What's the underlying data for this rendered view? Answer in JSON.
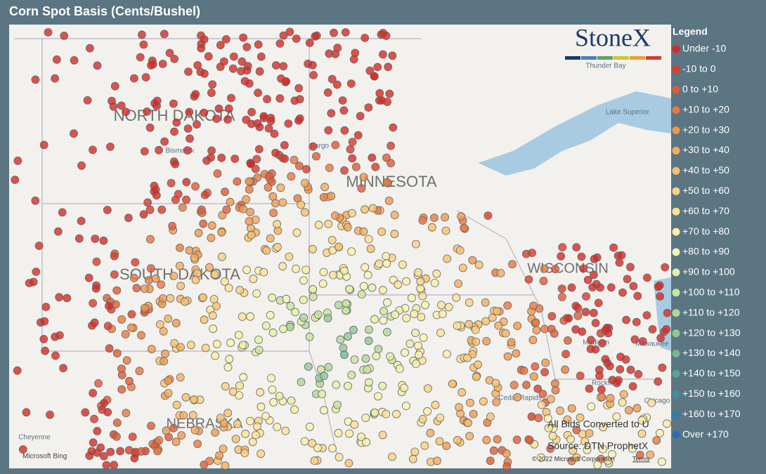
{
  "header": {
    "title": "Corn Spot Basis (Cents/Bushel)"
  },
  "logo": "StoneX",
  "legend": {
    "title": "Legend",
    "items": [
      {
        "label": "Under -10",
        "color": "#d42a26"
      },
      {
        "label": "-10 to 0",
        "color": "#da3b2b"
      },
      {
        "label": "0 to +10",
        "color": "#e15a37"
      },
      {
        "label": "+10 to +20",
        "color": "#e9783f"
      },
      {
        "label": "+20 to +30",
        "color": "#f0974b"
      },
      {
        "label": "+30 to +40",
        "color": "#f4ad5b"
      },
      {
        "label": "+40 to +50",
        "color": "#f7c06c"
      },
      {
        "label": "+50 to +60",
        "color": "#fad181"
      },
      {
        "label": "+60 to +70",
        "color": "#fce296"
      },
      {
        "label": "+70 to +80",
        "color": "#fdefa8"
      },
      {
        "label": "+80 to +90",
        "color": "#f4f5b0"
      },
      {
        "label": "+90 to +100",
        "color": "#e3f0a6"
      },
      {
        "label": "+100 to +110",
        "color": "#c9e59f"
      },
      {
        "label": "+110 to +120",
        "color": "#add899"
      },
      {
        "label": "+120 to +130",
        "color": "#8fc993"
      },
      {
        "label": "+130 to +140",
        "color": "#6fb792"
      },
      {
        "label": "+140 to +150",
        "color": "#52a596"
      },
      {
        "label": "+150 to +160",
        "color": "#3b919f"
      },
      {
        "label": "+160 to +170",
        "color": "#2f7eab"
      },
      {
        "label": "Over +170",
        "color": "#2a6db6"
      }
    ]
  },
  "map": {
    "labels": [
      "NORTH DAKOTA",
      "MINNESOTA",
      "SOUTH DAKOTA",
      "WISCONSIN",
      "NEBRASKA",
      "Bismarck",
      "Fargo",
      "Thunder Bay",
      "Lake Superior",
      "Madison",
      "Milwaukee",
      "Rockford",
      "Cedar Rapids",
      "Chicago",
      "Cheyenne"
    ],
    "notes": [
      "All Bids Converted to U",
      "Source: DTN ProphetX"
    ],
    "attribution": {
      "provider": "Microsoft Bing",
      "copyright": "© 2022 Microsoft Corporation",
      "terms": "Terms"
    }
  }
}
